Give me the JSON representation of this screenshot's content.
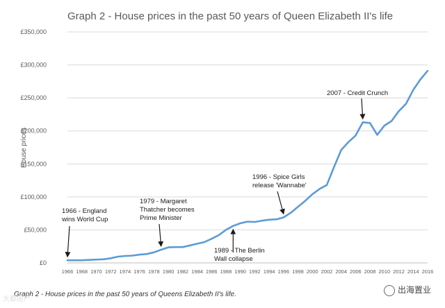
{
  "chart_data": {
    "type": "line",
    "title": "Graph 2 - House prices in the past 50 years of Queen Elizabeth II's life",
    "xlabel": "",
    "ylabel": "House prices",
    "ylim": [
      0,
      350000
    ],
    "yticks": [
      0,
      50000,
      100000,
      150000,
      200000,
      250000,
      300000,
      350000
    ],
    "ytick_labels": [
      "£0",
      "£50,000",
      "£100,000",
      "£150,000",
      "£200,000",
      "£250,000",
      "£300,000",
      "£350,000"
    ],
    "xlim": [
      1966,
      2016
    ],
    "xticks": [
      1966,
      1968,
      1970,
      1972,
      1974,
      1976,
      1978,
      1980,
      1982,
      1984,
      1986,
      1988,
      1990,
      1992,
      1994,
      1996,
      1998,
      2000,
      2002,
      2004,
      2006,
      2008,
      2010,
      2012,
      2014,
      2016
    ],
    "grid": "horizontal",
    "series": [
      {
        "name": "House prices",
        "color": "#5b9bd5",
        "x": [
          1966,
          1967,
          1968,
          1969,
          1970,
          1971,
          1972,
          1973,
          1974,
          1975,
          1976,
          1977,
          1978,
          1979,
          1980,
          1981,
          1982,
          1983,
          1984,
          1985,
          1986,
          1987,
          1988,
          1989,
          1990,
          1991,
          1992,
          1993,
          1994,
          1995,
          1996,
          1997,
          1998,
          1999,
          2000,
          2001,
          2002,
          2003,
          2004,
          2005,
          2006,
          2007,
          2008,
          2009,
          2010,
          2011,
          2012,
          2013,
          2014,
          2015,
          2016
        ],
        "values": [
          4000,
          4000,
          4000,
          4500,
          5000,
          5500,
          7000,
          9500,
          10500,
          11000,
          12500,
          13500,
          16000,
          20000,
          23500,
          24000,
          24000,
          26500,
          29000,
          31500,
          36500,
          42000,
          50000,
          56000,
          60000,
          62500,
          62000,
          64000,
          65500,
          66000,
          69000,
          76000,
          85000,
          94000,
          104000,
          112000,
          118000,
          145000,
          171000,
          183000,
          193000,
          213000,
          212000,
          194000,
          208000,
          215000,
          230000,
          241000,
          262000,
          278000,
          291000
        ]
      }
    ],
    "annotations": [
      {
        "lines": [
          "1966 - England",
          "wins World Cup"
        ],
        "x": 1966
      },
      {
        "lines": [
          "1979 - Margaret",
          "Thatcher becomes",
          "Prime Minister"
        ],
        "x": 1979
      },
      {
        "lines": [
          "1989 - The Berlin",
          "Wall collapse"
        ],
        "x": 1989
      },
      {
        "lines": [
          "1996 - Spice Girls",
          "release 'Wannabe'"
        ],
        "x": 1996
      },
      {
        "lines": [
          "2007 - Credit Crunch"
        ],
        "x": 2007
      }
    ]
  },
  "caption": "Graph 2 - House prices in the past 50 years of Queens Elizabeth II's life.",
  "watermark_left": "大都房产",
  "watermark_right": "出海置业"
}
